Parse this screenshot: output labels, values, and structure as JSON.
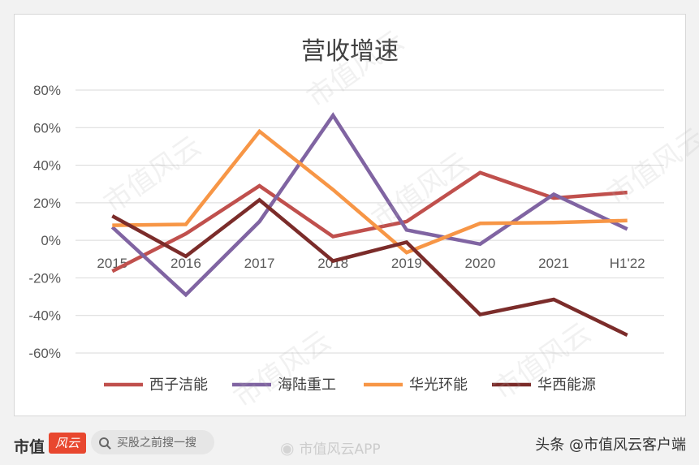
{
  "chart_data": {
    "type": "line",
    "title": "营收增速",
    "categories": [
      "2015",
      "2016",
      "2017",
      "2018",
      "2019",
      "2020",
      "2021",
      "H1'22"
    ],
    "ylim": [
      -60,
      80
    ],
    "yticks": [
      "80%",
      "60%",
      "40%",
      "20%",
      "0%",
      "-20%",
      "-40%",
      "-60%"
    ],
    "ytick_values": [
      80,
      60,
      40,
      20,
      0,
      -20,
      -40,
      -60
    ],
    "grid": true,
    "legend_position": "bottom",
    "series": [
      {
        "name": "西子洁能",
        "color": "#c0504d",
        "values": [
          -16.5,
          3.5,
          29,
          2,
          10,
          36,
          22.5,
          25.5
        ]
      },
      {
        "name": "海陆重工",
        "color": "#8064a2",
        "values": [
          7,
          -29,
          10,
          66.5,
          5.5,
          -2,
          24.5,
          6
        ]
      },
      {
        "name": "华光环能",
        "color": "#f79646",
        "values": [
          8,
          8.5,
          58,
          27,
          -6.5,
          9,
          9.5,
          10.5
        ]
      },
      {
        "name": "华西能源",
        "color": "#7b2c2a",
        "values": [
          13,
          -8.5,
          21.5,
          -11,
          -1,
          -39.5,
          -31.5,
          -50.5
        ]
      }
    ]
  },
  "footer": {
    "brand": "市值",
    "brand_logo_text": "风云",
    "search_placeholder": "买股之前搜一搜",
    "weibo_watermark": "市值风云APP",
    "credit": "头条 @市值风云客户端"
  },
  "watermark_text": "市值风云"
}
